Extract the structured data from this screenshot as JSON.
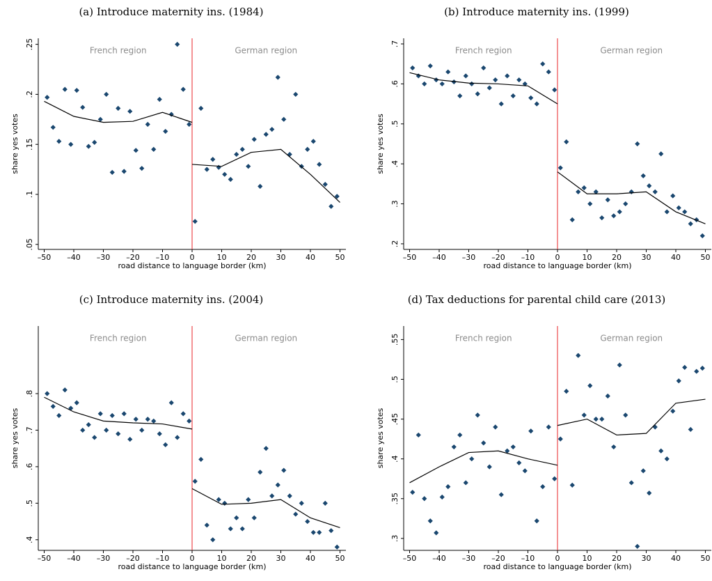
{
  "chart_data": [
    {
      "type": "scatter",
      "title": "(a) Introduce maternity ins. (1984)",
      "xlabel": "road distance to language border (km)",
      "ylabel": "share yes votes",
      "annotations": [
        "French region",
        "German region"
      ],
      "xlim": [
        -52,
        52
      ],
      "ylim": [
        0.045,
        0.256
      ],
      "xticks": [
        {
          "value": -50,
          "label": "–50"
        },
        {
          "value": -40,
          "label": "–40"
        },
        {
          "value": -30,
          "label": "–30"
        },
        {
          "value": -20,
          "label": "–20"
        },
        {
          "value": -10,
          "label": "–10"
        },
        0,
        10,
        20,
        30,
        40,
        50
      ],
      "yticks": [
        {
          "value": 0.05,
          "label": ".05"
        },
        {
          "value": 0.1,
          "label": ".1"
        },
        {
          "value": 0.15,
          "label": ".15"
        },
        {
          "value": 0.2,
          "label": ".2"
        },
        {
          "value": 0.25,
          "label": ".25"
        }
      ],
      "cutoff": 0,
      "cutoff_color": "#e8262a",
      "points": {
        "color": "#1a476f",
        "x": [
          -49,
          -47,
          -45,
          -43,
          -41,
          -39,
          -37,
          -35,
          -33,
          -31,
          -29,
          -27,
          -25,
          -23,
          -21,
          -19,
          -17,
          -15,
          -13,
          -11,
          -9,
          -7,
          -5,
          -3,
          -1,
          1,
          3,
          5,
          7,
          9,
          11,
          13,
          15,
          17,
          19,
          21,
          23,
          25,
          27,
          29,
          31,
          33,
          35,
          37,
          39,
          41,
          43,
          45,
          47,
          49
        ],
        "values": [
          0.197,
          0.167,
          0.153,
          0.205,
          0.15,
          0.204,
          0.187,
          0.148,
          0.152,
          0.175,
          0.2,
          0.122,
          0.186,
          0.123,
          0.183,
          0.144,
          0.126,
          0.17,
          0.145,
          0.195,
          0.163,
          0.18,
          0.25,
          0.205,
          0.17,
          0.073,
          0.186,
          0.125,
          0.135,
          0.127,
          0.12,
          0.115,
          0.14,
          0.145,
          0.128,
          0.155,
          0.108,
          0.16,
          0.165,
          0.217,
          0.175,
          0.14,
          0.2,
          0.128,
          0.145,
          0.153,
          0.13,
          0.11,
          0.088,
          0.098
        ]
      },
      "fit_color": "#000000",
      "fit_left": {
        "x": [
          -50,
          -40,
          -30,
          -20,
          -10,
          0
        ],
        "values": [
          0.193,
          0.178,
          0.172,
          0.173,
          0.182,
          0.172
        ]
      },
      "fit_right": {
        "x": [
          0,
          10,
          20,
          30,
          40,
          50
        ],
        "values": [
          0.13,
          0.128,
          0.142,
          0.145,
          0.12,
          0.092
        ]
      }
    },
    {
      "type": "scatter",
      "title": "(b) Introduce maternity ins. (1999)",
      "xlabel": "road distance to language border (km)",
      "ylabel": "share yes votes",
      "annotations": [
        "French region",
        "German region"
      ],
      "xlim": [
        -52,
        52
      ],
      "ylim": [
        0.186,
        0.714
      ],
      "xticks": [
        {
          "value": -50,
          "label": "–50"
        },
        {
          "value": -40,
          "label": "–40"
        },
        {
          "value": -30,
          "label": "–30"
        },
        {
          "value": -20,
          "label": "–20"
        },
        {
          "value": -10,
          "label": "–10"
        },
        0,
        10,
        20,
        30,
        40,
        50
      ],
      "yticks": [
        {
          "value": 0.2,
          "label": ".2"
        },
        {
          "value": 0.3,
          "label": ".3"
        },
        {
          "value": 0.4,
          "label": ".4"
        },
        {
          "value": 0.5,
          "label": ".5"
        },
        {
          "value": 0.6,
          "label": ".6"
        },
        {
          "value": 0.7,
          "label": ".7"
        }
      ],
      "cutoff": 0,
      "cutoff_color": "#e8262a",
      "points": {
        "color": "#1a476f",
        "x": [
          -49,
          -47,
          -45,
          -43,
          -41,
          -39,
          -37,
          -35,
          -33,
          -31,
          -29,
          -27,
          -25,
          -23,
          -21,
          -19,
          -17,
          -15,
          -13,
          -11,
          -9,
          -7,
          -5,
          -3,
          -1,
          1,
          3,
          5,
          7,
          9,
          11,
          13,
          15,
          17,
          19,
          21,
          23,
          25,
          27,
          29,
          31,
          33,
          35,
          37,
          39,
          41,
          43,
          45,
          47,
          49
        ],
        "values": [
          0.64,
          0.62,
          0.6,
          0.645,
          0.61,
          0.6,
          0.63,
          0.605,
          0.57,
          0.62,
          0.6,
          0.575,
          0.64,
          0.59,
          0.61,
          0.55,
          0.62,
          0.57,
          0.61,
          0.6,
          0.565,
          0.55,
          0.65,
          0.63,
          0.585,
          0.39,
          0.455,
          0.26,
          0.33,
          0.34,
          0.3,
          0.33,
          0.265,
          0.31,
          0.27,
          0.28,
          0.3,
          0.33,
          0.45,
          0.37,
          0.345,
          0.33,
          0.425,
          0.28,
          0.32,
          0.29,
          0.28,
          0.25,
          0.26,
          0.22
        ]
      },
      "fit_color": "#000000",
      "fit_left": {
        "x": [
          -50,
          -40,
          -30,
          -20,
          -10,
          0
        ],
        "values": [
          0.628,
          0.61,
          0.602,
          0.6,
          0.595,
          0.55
        ]
      },
      "fit_right": {
        "x": [
          0,
          10,
          20,
          30,
          40,
          50
        ],
        "values": [
          0.38,
          0.325,
          0.325,
          0.33,
          0.28,
          0.25
        ]
      }
    },
    {
      "type": "scatter",
      "title": "(c) Introduce maternity ins. (2004)",
      "xlabel": "road distance to language border (km)",
      "ylabel": "share yes votes",
      "annotations": [
        "French region",
        "German region"
      ],
      "xlim": [
        -52,
        52
      ],
      "ylim": [
        0.371,
        0.985
      ],
      "xticks": [
        {
          "value": -50,
          "label": "–50"
        },
        {
          "value": -40,
          "label": "–40"
        },
        {
          "value": -30,
          "label": "–30"
        },
        {
          "value": -20,
          "label": "–20"
        },
        {
          "value": -10,
          "label": "–10"
        },
        0,
        10,
        20,
        30,
        40,
        50
      ],
      "yticks": [
        {
          "value": 0.4,
          "label": ".4"
        },
        {
          "value": 0.5,
          "label": ".5"
        },
        {
          "value": 0.6,
          "label": ".6"
        },
        {
          "value": 0.7,
          "label": ".7"
        },
        {
          "value": 0.8,
          "label": ".8"
        }
      ],
      "cutoff": 0,
      "cutoff_color": "#e8262a",
      "points": {
        "color": "#1a476f",
        "x": [
          -49,
          -47,
          -45,
          -43,
          -41,
          -39,
          -37,
          -35,
          -33,
          -31,
          -29,
          -27,
          -25,
          -23,
          -21,
          -19,
          -17,
          -15,
          -13,
          -11,
          -9,
          -7,
          -5,
          -3,
          -1,
          1,
          3,
          5,
          7,
          9,
          11,
          13,
          15,
          17,
          19,
          21,
          23,
          25,
          27,
          29,
          31,
          33,
          35,
          37,
          39,
          41,
          43,
          45,
          47,
          49
        ],
        "values": [
          0.8,
          0.765,
          0.74,
          0.81,
          0.76,
          0.775,
          0.7,
          0.715,
          0.68,
          0.745,
          0.7,
          0.74,
          0.69,
          0.745,
          0.675,
          0.73,
          0.7,
          0.73,
          0.725,
          0.69,
          0.66,
          0.775,
          0.68,
          0.745,
          0.725,
          0.56,
          0.62,
          0.44,
          0.4,
          0.51,
          0.5,
          0.43,
          0.46,
          0.43,
          0.51,
          0.46,
          0.585,
          0.65,
          0.52,
          0.55,
          0.59,
          0.52,
          0.47,
          0.5,
          0.45,
          0.42,
          0.42,
          0.5,
          0.425,
          0.38
        ]
      },
      "fit_color": "#000000",
      "fit_left": {
        "x": [
          -50,
          -40,
          -30,
          -20,
          -10,
          0
        ],
        "values": [
          0.79,
          0.75,
          0.725,
          0.72,
          0.717,
          0.703
        ]
      },
      "fit_right": {
        "x": [
          0,
          10,
          20,
          30,
          40,
          50
        ],
        "values": [
          0.54,
          0.497,
          0.5,
          0.51,
          0.46,
          0.433
        ]
      }
    },
    {
      "type": "scatter",
      "title": "(d) Tax deductions for parental child care (2013)",
      "xlabel": "road distance to language border (km)",
      "ylabel": "share yes votes",
      "annotations": [
        "French region",
        "German region"
      ],
      "xlim": [
        -52,
        52
      ],
      "ylim": [
        0.285,
        0.567
      ],
      "xticks": [
        {
          "value": -50,
          "label": "–50"
        },
        {
          "value": -40,
          "label": "–40"
        },
        {
          "value": -30,
          "label": "–30"
        },
        {
          "value": -20,
          "label": "–20"
        },
        {
          "value": -10,
          "label": "–10"
        },
        0,
        10,
        20,
        30,
        40,
        50
      ],
      "yticks": [
        {
          "value": 0.3,
          "label": ".3"
        },
        {
          "value": 0.35,
          "label": ".35"
        },
        {
          "value": 0.4,
          "label": ".4"
        },
        {
          "value": 0.45,
          "label": ".45"
        },
        {
          "value": 0.5,
          "label": ".5"
        },
        {
          "value": 0.55,
          "label": ".55"
        }
      ],
      "cutoff": 0,
      "cutoff_color": "#e8262a",
      "points": {
        "color": "#1a476f",
        "x": [
          -49,
          -47,
          -45,
          -43,
          -41,
          -39,
          -37,
          -35,
          -33,
          -31,
          -29,
          -27,
          -25,
          -23,
          -21,
          -19,
          -17,
          -15,
          -13,
          -11,
          -9,
          -7,
          -5,
          -3,
          -1,
          1,
          3,
          5,
          7,
          9,
          11,
          13,
          15,
          17,
          19,
          21,
          23,
          25,
          27,
          29,
          31,
          33,
          35,
          37,
          39,
          41,
          43,
          45,
          47,
          49
        ],
        "values": [
          0.358,
          0.43,
          0.35,
          0.322,
          0.307,
          0.352,
          0.365,
          0.415,
          0.43,
          0.37,
          0.4,
          0.455,
          0.42,
          0.39,
          0.44,
          0.355,
          0.41,
          0.415,
          0.395,
          0.385,
          0.435,
          0.322,
          0.365,
          0.44,
          0.375,
          0.425,
          0.485,
          0.367,
          0.53,
          0.455,
          0.492,
          0.45,
          0.45,
          0.479,
          0.415,
          0.518,
          0.455,
          0.37,
          0.29,
          0.385,
          0.357,
          0.44,
          0.41,
          0.4,
          0.46,
          0.498,
          0.515,
          0.437,
          0.51,
          0.514
        ]
      },
      "fit_color": "#000000",
      "fit_left": {
        "x": [
          -50,
          -40,
          -30,
          -20,
          -10,
          0
        ],
        "values": [
          0.37,
          0.39,
          0.408,
          0.41,
          0.4,
          0.392
        ]
      },
      "fit_right": {
        "x": [
          0,
          10,
          20,
          30,
          40,
          50
        ],
        "values": [
          0.442,
          0.45,
          0.43,
          0.432,
          0.47,
          0.475
        ]
      }
    }
  ]
}
